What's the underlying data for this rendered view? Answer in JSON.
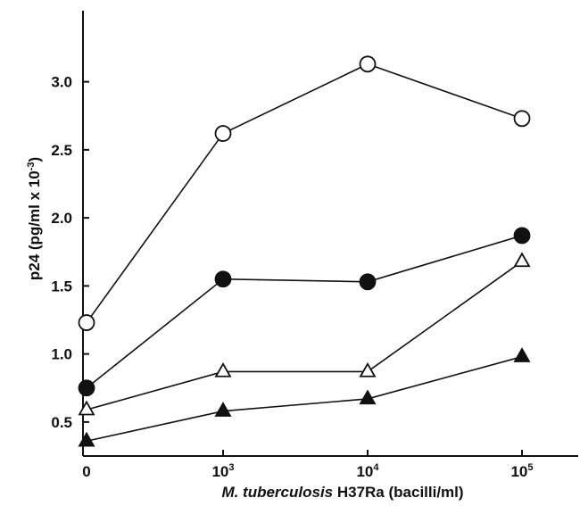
{
  "chart_data": {
    "type": "line",
    "x_categories": [
      "0",
      "10^3",
      "10^4",
      "10^5"
    ],
    "x_tick_labels": [
      {
        "base": "0",
        "exp": ""
      },
      {
        "base": "10",
        "exp": "3"
      },
      {
        "base": "10",
        "exp": "4"
      },
      {
        "base": "10",
        "exp": "5"
      }
    ],
    "y_ticks": [
      "0.5",
      "1.0",
      "1.5",
      "2.0",
      "2.5",
      "3.0"
    ],
    "ylim": [
      0,
      3.25
    ],
    "xlabel": {
      "italic": "M. tuberculosis",
      "rest": " H37Ra (bacilli/ml)"
    },
    "ylabel": {
      "text": "p24 (pg/ml x 10",
      "sup": "-3",
      "close": ")"
    },
    "grid": false,
    "series": [
      {
        "marker": "open-circle",
        "values": [
          1.23,
          2.62,
          3.13,
          2.73
        ]
      },
      {
        "marker": "filled-circle",
        "values": [
          0.75,
          1.55,
          1.53,
          1.87
        ]
      },
      {
        "marker": "open-triangle",
        "values": [
          0.59,
          0.87,
          0.87,
          1.68
        ]
      },
      {
        "marker": "filled-triangle",
        "values": [
          0.36,
          0.58,
          0.67,
          0.98
        ]
      }
    ],
    "colors": {
      "line": "#111111",
      "background": "#ffffff"
    }
  }
}
